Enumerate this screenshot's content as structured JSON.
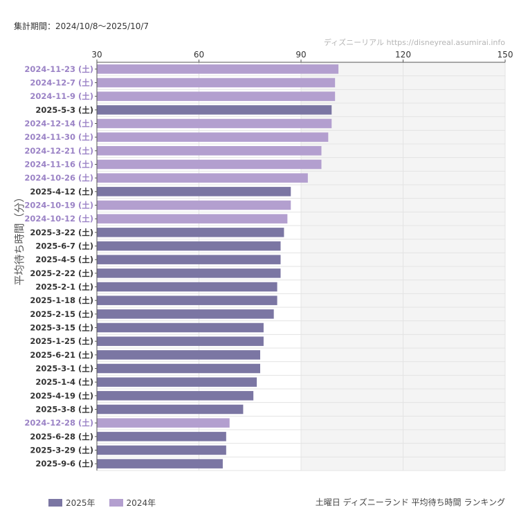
{
  "header": {
    "period": "集計期間：2024/10/8〜2025/10/7",
    "credit": "ディズニーリアル  https://disneyreal.asumirai.info"
  },
  "footer": {
    "title": "土曜日 ディズニーランド 平均待ち時間 ランキング"
  },
  "colors": {
    "2025": "#7b76a3",
    "2024": "#b39fcf",
    "label_2025": "#333333",
    "label_2024": "#9b83c6",
    "shade": "#f4f4f4",
    "grid": "#e3e3e3"
  },
  "chart_data": {
    "type": "bar",
    "orientation": "horizontal",
    "ylabel": "平均待ち時間（分）",
    "xlim": [
      30,
      150
    ],
    "xticks": [
      "30",
      "60",
      "90",
      "120",
      "150"
    ],
    "shaded_range": [
      90,
      150
    ],
    "legend": [
      {
        "name": "2025年",
        "year": "2025"
      },
      {
        "name": "2024年",
        "year": "2024"
      }
    ],
    "bars": [
      {
        "label": "2024-11-23 (土)",
        "year": "2024",
        "value": 101
      },
      {
        "label": "2024-12-7 (土)",
        "year": "2024",
        "value": 100
      },
      {
        "label": "2024-11-9 (土)",
        "year": "2024",
        "value": 100
      },
      {
        "label": "2025-5-3 (土)",
        "year": "2025",
        "value": 99
      },
      {
        "label": "2024-12-14 (土)",
        "year": "2024",
        "value": 99
      },
      {
        "label": "2024-11-30 (土)",
        "year": "2024",
        "value": 98
      },
      {
        "label": "2024-12-21 (土)",
        "year": "2024",
        "value": 96
      },
      {
        "label": "2024-11-16 (土)",
        "year": "2024",
        "value": 96
      },
      {
        "label": "2024-10-26 (土)",
        "year": "2024",
        "value": 92
      },
      {
        "label": "2025-4-12 (土)",
        "year": "2025",
        "value": 87
      },
      {
        "label": "2024-10-19 (土)",
        "year": "2024",
        "value": 87
      },
      {
        "label": "2024-10-12 (土)",
        "year": "2024",
        "value": 86
      },
      {
        "label": "2025-3-22 (土)",
        "year": "2025",
        "value": 85
      },
      {
        "label": "2025-6-7 (土)",
        "year": "2025",
        "value": 84
      },
      {
        "label": "2025-4-5 (土)",
        "year": "2025",
        "value": 84
      },
      {
        "label": "2025-2-22 (土)",
        "year": "2025",
        "value": 84
      },
      {
        "label": "2025-2-1 (土)",
        "year": "2025",
        "value": 83
      },
      {
        "label": "2025-1-18 (土)",
        "year": "2025",
        "value": 83
      },
      {
        "label": "2025-2-15 (土)",
        "year": "2025",
        "value": 82
      },
      {
        "label": "2025-3-15 (土)",
        "year": "2025",
        "value": 79
      },
      {
        "label": "2025-1-25 (土)",
        "year": "2025",
        "value": 79
      },
      {
        "label": "2025-6-21 (土)",
        "year": "2025",
        "value": 78
      },
      {
        "label": "2025-3-1 (土)",
        "year": "2025",
        "value": 78
      },
      {
        "label": "2025-1-4 (土)",
        "year": "2025",
        "value": 77
      },
      {
        "label": "2025-4-19 (土)",
        "year": "2025",
        "value": 76
      },
      {
        "label": "2025-3-8 (土)",
        "year": "2025",
        "value": 73
      },
      {
        "label": "2024-12-28 (土)",
        "year": "2024",
        "value": 69
      },
      {
        "label": "2025-6-28 (土)",
        "year": "2025",
        "value": 68
      },
      {
        "label": "2025-3-29 (土)",
        "year": "2025",
        "value": 68
      },
      {
        "label": "2025-9-6 (土)",
        "year": "2025",
        "value": 67
      }
    ]
  }
}
